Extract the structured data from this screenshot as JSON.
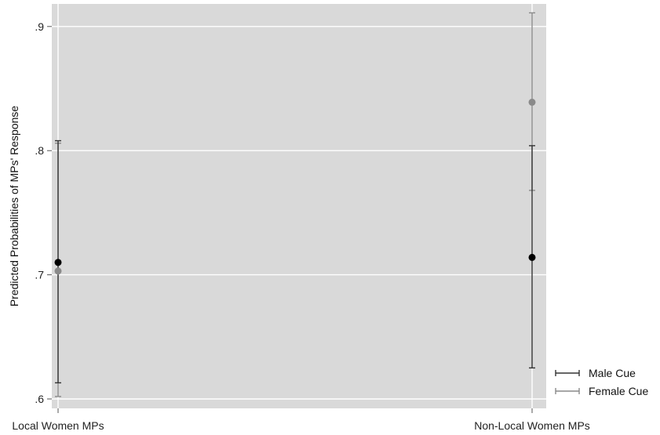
{
  "chart_data": {
    "type": "scatter",
    "subtype": "point-with-error-bars",
    "categories": [
      "Local Women MPs",
      "Non-Local Women MPs"
    ],
    "ylabel": "Predicted Probabilities of MPs' Response",
    "xlabel": "",
    "ylim": [
      0.595,
      0.92
    ],
    "yticks": [
      0.6,
      0.7,
      0.8,
      0.9
    ],
    "ytick_labels": [
      ".6",
      ".7",
      ".8",
      ".9"
    ],
    "grid": true,
    "legend_position": "bottom-right",
    "series": [
      {
        "name": "Male Cue",
        "color": "#000000",
        "errorbar_color": "#333333",
        "values": [
          0.71,
          0.714
        ],
        "lower": [
          0.613,
          0.625
        ],
        "upper": [
          0.808,
          0.804
        ]
      },
      {
        "name": "Female Cue",
        "color": "#8a8a8a",
        "errorbar_color": "#8a8a8a",
        "values": [
          0.703,
          0.839
        ],
        "lower": [
          0.602,
          0.768
        ],
        "upper": [
          0.806,
          0.911
        ]
      }
    ]
  }
}
